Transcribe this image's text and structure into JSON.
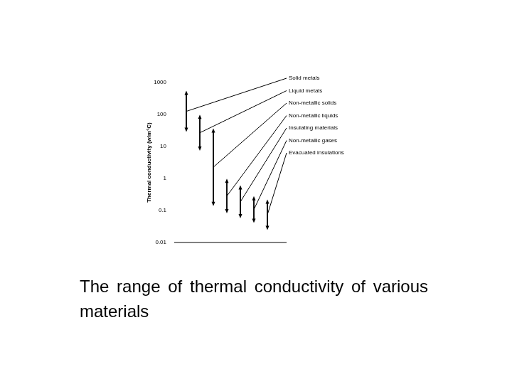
{
  "chart_data": {
    "type": "bar",
    "y_label": "Thermal conductivity (w/m°C)",
    "caption": "The range of thermal conductivity of various materials",
    "categories": [
      "Solid metals",
      "Liquid metals",
      "Non-metallic solids",
      "Non-metallic liquids",
      "Insulating materials",
      "Non-metallic gases",
      "Evacuated insulations"
    ],
    "values": [
      [
        35,
        450
      ],
      [
        9,
        80
      ],
      [
        0.17,
        30
      ],
      [
        0.1,
        0.8
      ],
      [
        0.07,
        0.5
      ],
      [
        0.05,
        0.23
      ],
      [
        0.03,
        0.18
      ]
    ],
    "color": "#000000",
    "marker": "arrow",
    "log": "y",
    "ylim": [
      0.01,
      1000
    ],
    "yticks": [
      0.01,
      0.1,
      1,
      10,
      100,
      1000
    ],
    "grid": false,
    "tick_labels": "y"
  }
}
